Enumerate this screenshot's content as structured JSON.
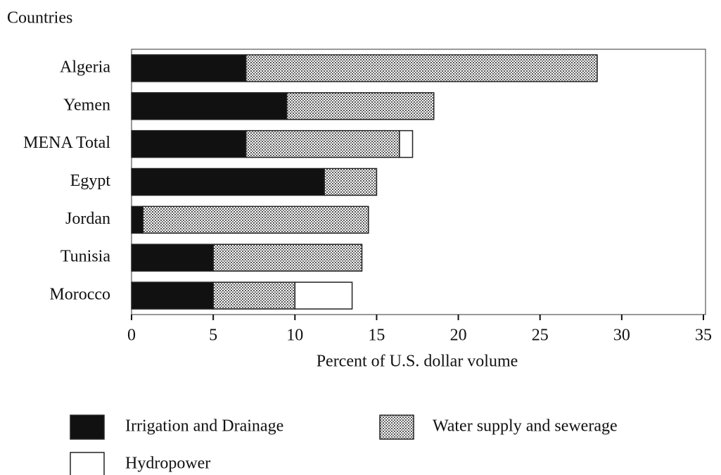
{
  "chart_data": {
    "type": "stacked_barh",
    "ylabel": "Countries",
    "xlabel": "Percent of U.S. dollar volume",
    "categories": [
      "Algeria",
      "Yemen",
      "MENA Total",
      "Egypt",
      "Jordan",
      "Tunisia",
      "Morocco"
    ],
    "series": [
      {
        "name": "Irrigation and Drainage",
        "color": "#111111",
        "values": [
          7.0,
          9.5,
          7.0,
          11.8,
          0.7,
          5.0,
          5.0
        ]
      },
      {
        "name": "Water supply and sewerage",
        "color": "#b4b4b4",
        "values": [
          21.5,
          9.0,
          9.4,
          3.2,
          13.8,
          9.1,
          5.0
        ]
      },
      {
        "name": "Hydropower",
        "color": "#ffffff",
        "values": [
          0,
          0,
          0.8,
          0,
          0,
          0,
          3.5
        ]
      }
    ],
    "xlim": [
      0,
      35
    ],
    "xticks": [
      0,
      5,
      10,
      15,
      20,
      25,
      30,
      35
    ]
  }
}
